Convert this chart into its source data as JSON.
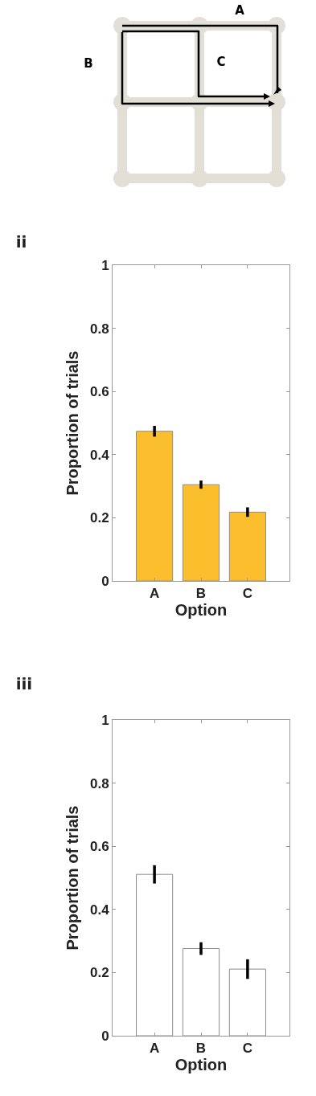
{
  "chart_data": [
    {
      "type": "other",
      "annotations": [
        "A",
        "B",
        "C"
      ]
    },
    {
      "type": "bar",
      "title": "ii",
      "xlabel": "Option",
      "ylabel": "Proportion of trials",
      "categories": [
        "A",
        "B",
        "C"
      ],
      "series": [
        {
          "color": "#fbbf2e",
          "values": [
            0.474,
            0.305,
            0.218
          ],
          "errors": [
            0.017,
            0.013,
            0.015
          ]
        }
      ],
      "ylim": [
        0,
        1
      ],
      "yticks": [
        0,
        0.2,
        0.4,
        0.6,
        0.8,
        1
      ],
      "grid": false,
      "legend": false
    },
    {
      "type": "bar",
      "title": "iii",
      "xlabel": "Option",
      "ylabel": "Proportion of trials",
      "categories": [
        "A",
        "B",
        "C"
      ],
      "series": [
        {
          "color": "#ffffff",
          "values": [
            0.511,
            0.276,
            0.211
          ],
          "errors": [
            0.029,
            0.02,
            0.031
          ]
        }
      ],
      "ylim": [
        0,
        1
      ],
      "yticks": [
        0,
        0.2,
        0.4,
        0.6,
        0.8,
        1
      ],
      "grid": false,
      "legend": false
    }
  ]
}
